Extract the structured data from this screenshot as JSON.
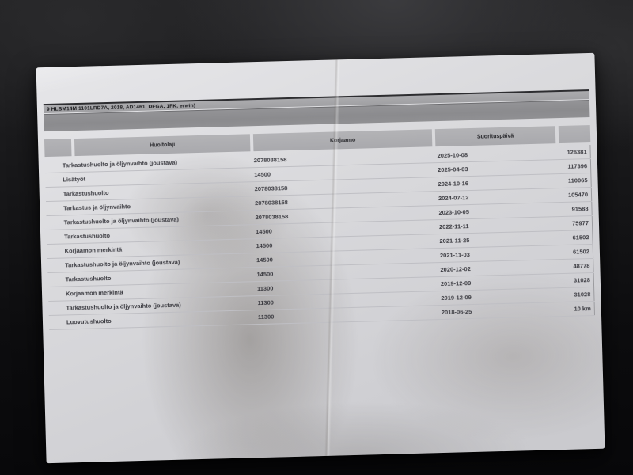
{
  "document": {
    "vehicle_info_line": "9 HLBM14M 1101LRD7A, 2018, AD1461, DFGA, 1FK, erwin)",
    "table": {
      "headers": {
        "huoltolaji": "Huoltolaji",
        "korjaamo": "Korjaamo",
        "suorituspaiva": "Suorituspäivä"
      },
      "rows": [
        {
          "huoltolaji": "Tarkastushuolto ja öljynvaihto (joustava)",
          "korjaamo": "2078038158",
          "suorituspaiva": "2025-10-08",
          "mittarilukema": "126381"
        },
        {
          "huoltolaji": "Lisätyöt",
          "korjaamo": "14500",
          "suorituspaiva": "2025-04-03",
          "mittarilukema": "117396"
        },
        {
          "huoltolaji": "Tarkastushuolto",
          "korjaamo": "2078038158",
          "suorituspaiva": "2024-10-16",
          "mittarilukema": "110065"
        },
        {
          "huoltolaji": "Tarkastus ja öljynvaihto",
          "korjaamo": "2078038158",
          "suorituspaiva": "2024-07-12",
          "mittarilukema": "105470"
        },
        {
          "huoltolaji": "Tarkastushuolto ja öljynvaihto (joustava)",
          "korjaamo": "2078038158",
          "suorituspaiva": "2023-10-05",
          "mittarilukema": "91588"
        },
        {
          "huoltolaji": "Tarkastushuolto",
          "korjaamo": "14500",
          "suorituspaiva": "2022-11-11",
          "mittarilukema": "75977"
        },
        {
          "huoltolaji": "Korjaamon merkintä",
          "korjaamo": "14500",
          "suorituspaiva": "2021-11-25",
          "mittarilukema": "61502"
        },
        {
          "huoltolaji": "Tarkastushuolto ja öljynvaihto (joustava)",
          "korjaamo": "14500",
          "suorituspaiva": "2021-11-03",
          "mittarilukema": "61502"
        },
        {
          "huoltolaji": "Tarkastushuolto",
          "korjaamo": "14500",
          "suorituspaiva": "2020-12-02",
          "mittarilukema": "48778"
        },
        {
          "huoltolaji": "Korjaamon merkintä",
          "korjaamo": "11300",
          "suorituspaiva": "2019-12-09",
          "mittarilukema": "31028"
        },
        {
          "huoltolaji": "Tarkastushuolto ja öljynvaihto (joustava)",
          "korjaamo": "11300",
          "suorituspaiva": "2019-12-09",
          "mittarilukema": "31028"
        },
        {
          "huoltolaji": "Luovutushuolto",
          "korjaamo": "11300",
          "suorituspaiva": "2018-06-25",
          "mittarilukema": "10 km"
        }
      ]
    }
  },
  "colors": {
    "background_fabric": "#141416",
    "paper": "#d8d8db",
    "vehicle_bar": "#a4a4a7",
    "title_bar": "#8e8e91",
    "header_cell": "#aeaeb1",
    "row_divider": "#bfbfc4",
    "text": "#3a3a40"
  }
}
